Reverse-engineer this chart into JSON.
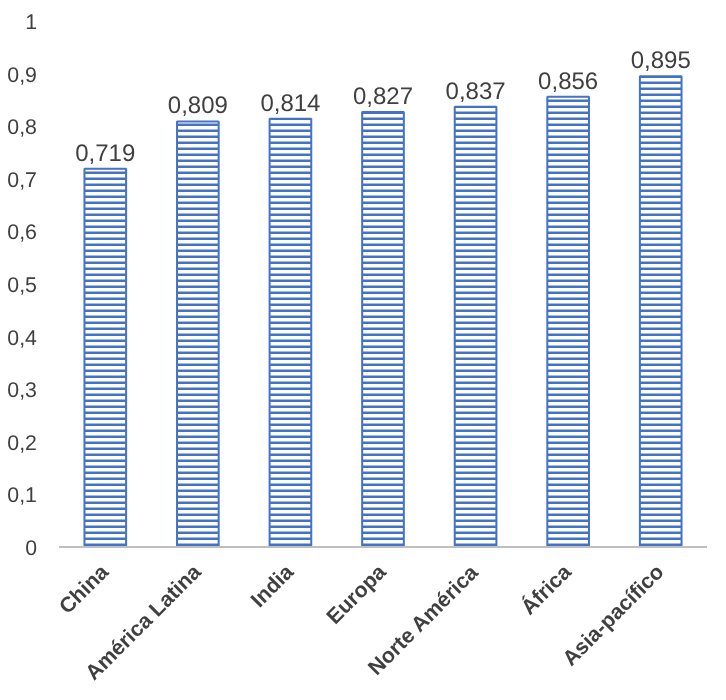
{
  "chart_data": {
    "type": "bar",
    "categories": [
      "China",
      "América Latina",
      "India",
      "Europa",
      "Norte América",
      "África",
      "Asia-pacífico"
    ],
    "values": [
      0.719,
      0.809,
      0.814,
      0.827,
      0.837,
      0.856,
      0.895
    ],
    "value_labels": [
      "0,719",
      "0,809",
      "0,814",
      "0,827",
      "0,837",
      "0,856",
      "0,895"
    ],
    "color": "#4472c4",
    "ylim": [
      0,
      1
    ],
    "yticks": [
      0,
      {
        "value": 0.1,
        "label": "0,1"
      },
      {
        "value": 0.2,
        "label": "0,2"
      },
      {
        "value": 0.3,
        "label": "0,3"
      },
      {
        "value": 0.4,
        "label": "0,4"
      },
      {
        "value": 0.5,
        "label": "0,5"
      },
      {
        "value": 0.6,
        "label": "0,6"
      },
      {
        "value": 0.7,
        "label": "0,7"
      },
      {
        "value": 0.8,
        "label": "0,8"
      },
      {
        "value": 0.9,
        "label": "0,9"
      },
      1
    ],
    "grid": false
  }
}
